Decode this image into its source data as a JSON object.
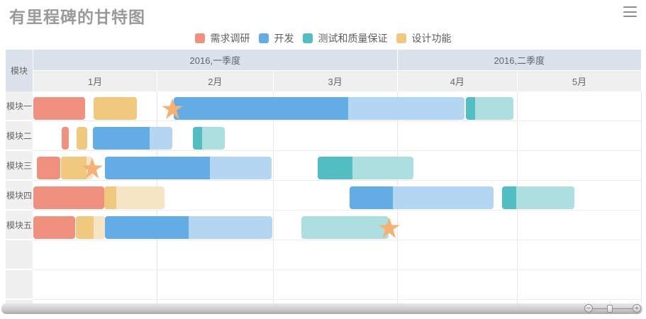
{
  "title": "有里程碑的甘特图",
  "menu": {
    "icon": "hamburger-icon"
  },
  "legend": [
    {
      "label": "需求调研",
      "color": "#f0907e",
      "light": "#f8d4cc"
    },
    {
      "label": "开发",
      "color": "#63ace6",
      "light": "#b4d6f2"
    },
    {
      "label": "测试和质量保证",
      "color": "#52bec3",
      "light": "#addfe1"
    },
    {
      "label": "设计功能",
      "color": "#f0c87e",
      "light": "#f6e5c4"
    }
  ],
  "chart_data": {
    "type": "gantt",
    "corner_label": "模块",
    "quarters": [
      {
        "label": "2016,一季度",
        "months": 3
      },
      {
        "label": "2016,二季度",
        "months": 2
      }
    ],
    "months": [
      {
        "label": "1月",
        "days": 31
      },
      {
        "label": "2月",
        "days": 29
      },
      {
        "label": "3月",
        "days": 31
      },
      {
        "label": "4月",
        "days": 30
      },
      {
        "label": "5月",
        "days": 31
      }
    ],
    "milestone_color": "#f5b173",
    "axis_note": "start/end/milestone positions are percent of the Jan-May time axis; progress is percent of the bar shown in the solid color",
    "rows": [
      {
        "label": "模块一",
        "tasks": [
          {
            "category": "需求调研",
            "start": 0.1,
            "end": 8.6,
            "progress": 100
          },
          {
            "category": "设计功能",
            "start": 10.0,
            "end": 17.1,
            "progress": 100
          },
          {
            "category": "开发",
            "start": 23.2,
            "end": 71.0,
            "progress": 60
          },
          {
            "category": "测试和质量保证",
            "start": 71.2,
            "end": 79.0,
            "progress": 19
          }
        ],
        "milestones": [
          {
            "at": 23.0
          }
        ]
      },
      {
        "label": "模块二",
        "tasks": [
          {
            "category": "需求调研",
            "start": 4.8,
            "end": 5.9,
            "progress": 100
          },
          {
            "category": "设计功能",
            "start": 7.2,
            "end": 9.0,
            "progress": 100
          },
          {
            "category": "开发",
            "start": 9.9,
            "end": 23.0,
            "progress": 71
          },
          {
            "category": "测试和质量保证",
            "start": 26.3,
            "end": 31.6,
            "progress": 29
          }
        ],
        "milestones": []
      },
      {
        "label": "模块三",
        "tasks": [
          {
            "category": "需求调研",
            "start": 0.7,
            "end": 4.6,
            "progress": 100
          },
          {
            "category": "设计功能",
            "start": 4.7,
            "end": 9.9,
            "progress": 80
          },
          {
            "category": "开发",
            "start": 11.9,
            "end": 39.3,
            "progress": 63
          },
          {
            "category": "测试和质量保证",
            "start": 46.9,
            "end": 62.6,
            "progress": 36
          }
        ],
        "milestones": [
          {
            "at": 9.8
          }
        ]
      },
      {
        "label": "模块四",
        "tasks": [
          {
            "category": "需求调研",
            "start": 0.1,
            "end": 11.8,
            "progress": 100
          },
          {
            "category": "设计功能",
            "start": 11.8,
            "end": 21.7,
            "progress": 20
          },
          {
            "category": "开发",
            "start": 52.1,
            "end": 75.8,
            "progress": 30
          },
          {
            "category": "测试和质量保证",
            "start": 77.2,
            "end": 89.0,
            "progress": 19
          }
        ],
        "milestones": []
      },
      {
        "label": "模块五",
        "tasks": [
          {
            "category": "需求调研",
            "start": 0.1,
            "end": 7.0,
            "progress": 100
          },
          {
            "category": "设计功能",
            "start": 7.1,
            "end": 11.9,
            "progress": 61
          },
          {
            "category": "开发",
            "start": 11.9,
            "end": 39.4,
            "progress": 50
          },
          {
            "category": "测试和质量保证",
            "start": 44.2,
            "end": 58.5,
            "progress": 0
          }
        ],
        "milestones": [
          {
            "at": 58.6
          }
        ]
      },
      {
        "label": "",
        "tasks": [],
        "milestones": []
      },
      {
        "label": "",
        "tasks": [],
        "milestones": []
      },
      {
        "label": "",
        "tasks": [],
        "milestones": []
      }
    ]
  },
  "scrollbar": {
    "minus": "−",
    "plus": "+"
  }
}
